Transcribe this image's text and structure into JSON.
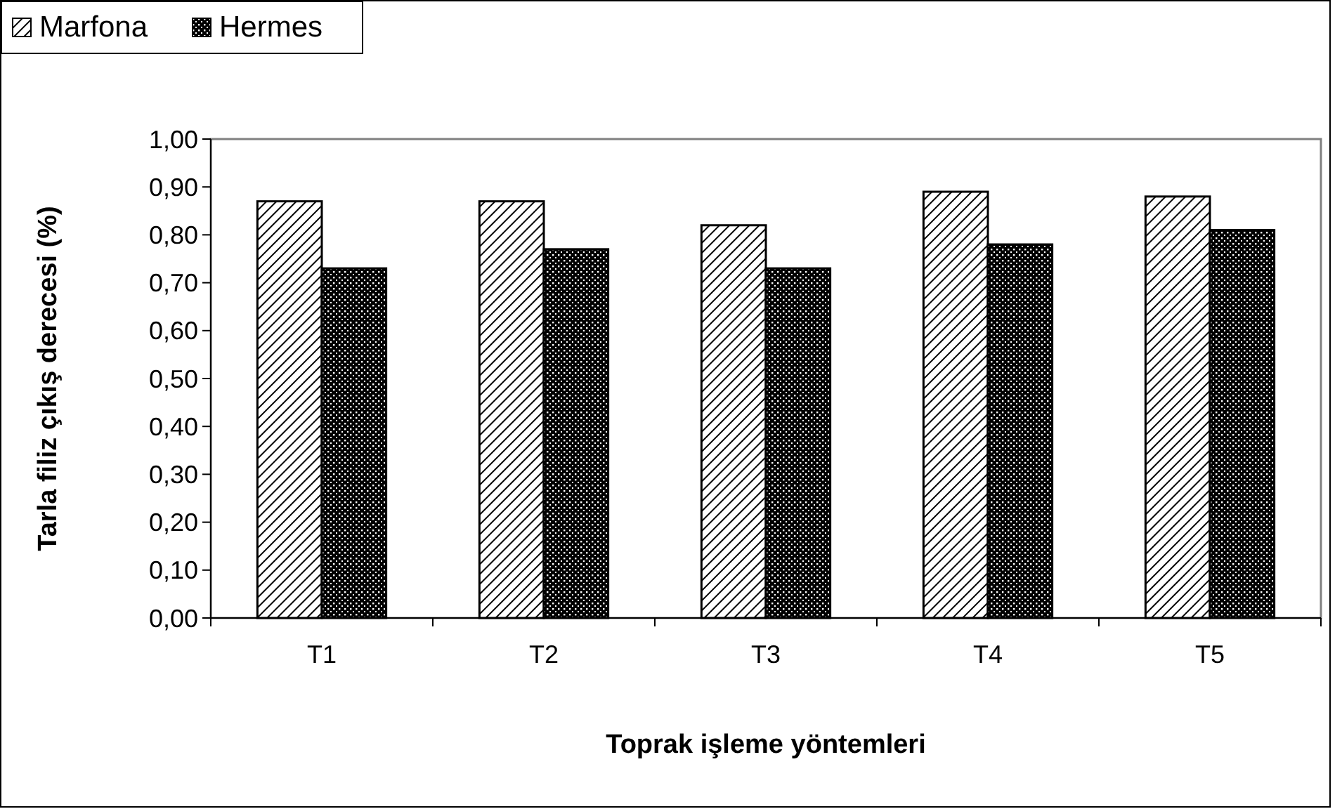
{
  "chart_data": {
    "type": "bar",
    "xlabel": "Toprak işleme yöntemleri",
    "ylabel": "Tarla filiz çıkış derecesi (%)",
    "categories": [
      "T1",
      "T2",
      "T3",
      "T4",
      "T5"
    ],
    "series": [
      {
        "name": "Marfona",
        "color": "#000000",
        "values": [
          0.87,
          0.87,
          0.82,
          0.89,
          0.88
        ]
      },
      {
        "name": "Hermes",
        "color": "#000000",
        "values": [
          0.73,
          0.77,
          0.73,
          0.78,
          0.81
        ]
      }
    ],
    "ylim": [
      0,
      1
    ],
    "yticks": [
      {
        "value": 0,
        "label": "0,00"
      },
      {
        "value": 0.1,
        "label": "0,10"
      },
      {
        "value": 0.2,
        "label": "0,20"
      },
      {
        "value": 0.3,
        "label": "0,30"
      },
      {
        "value": 0.4,
        "label": "0,40"
      },
      {
        "value": 0.5,
        "label": "0,50"
      },
      {
        "value": 0.6,
        "label": "0,60"
      },
      {
        "value": 0.7,
        "label": "0,70"
      },
      {
        "value": 0.8,
        "label": "0,80"
      },
      {
        "value": 0.9,
        "label": "0,90"
      },
      {
        "value": 1,
        "label": "1,00"
      }
    ],
    "legend": "top left",
    "grid": false
  }
}
